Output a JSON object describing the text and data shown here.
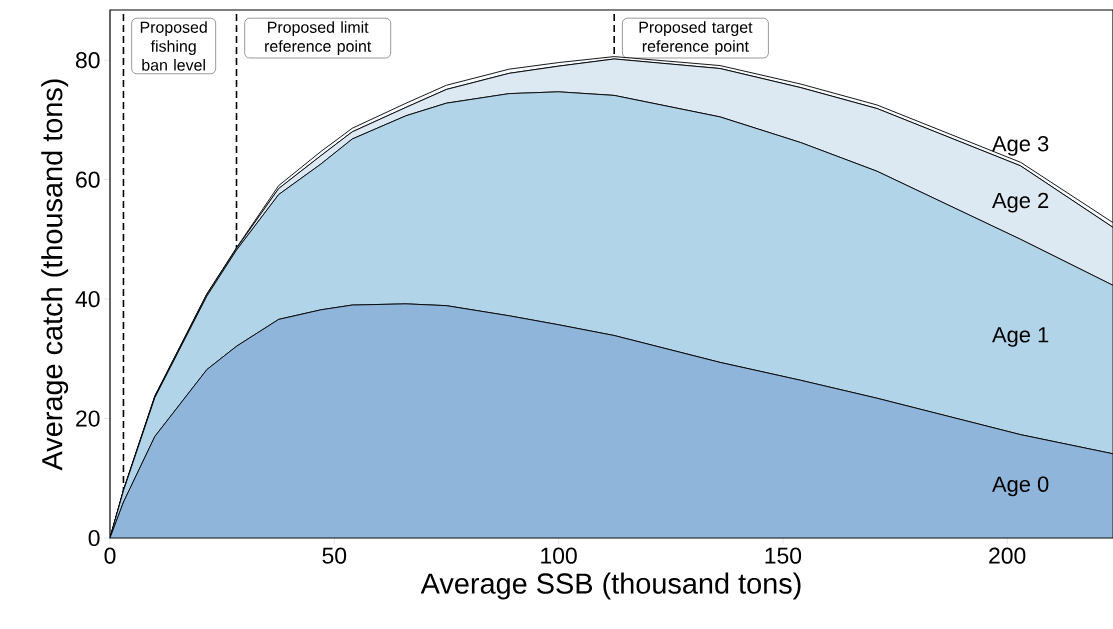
{
  "chart_data": {
    "type": "area",
    "stacked": true,
    "xlabel": "Average SSB (thousand tons)",
    "ylabel": "Average catch (thousand tons)",
    "x": [
      0,
      3,
      10,
      21.6,
      28.2,
      37.6,
      47,
      54,
      66,
      75,
      89,
      100,
      112.4,
      136,
      154,
      171,
      203,
      223.6
    ],
    "series": [
      {
        "name": "Age 0",
        "color": "#8fb5da",
        "values": [
          0,
          6,
          17,
          28.2,
          32.1,
          36.6,
          38.2,
          39.0,
          39.2,
          38.9,
          37.2,
          35.7,
          33.9,
          29.4,
          26.4,
          23.4,
          17.3,
          14.1
        ]
      },
      {
        "name": "Age 1",
        "color": "#b2d4e9",
        "values": [
          0,
          1.9,
          6.5,
          12.3,
          16.1,
          20.9,
          24.4,
          27.8,
          31.5,
          33.9,
          37.2,
          39.0,
          40.2,
          41.1,
          39.8,
          38.0,
          32.7,
          28.2
        ]
      },
      {
        "name": "Age 2",
        "color": "#dde9f2",
        "values": [
          0,
          0.1,
          0.2,
          0.3,
          0.3,
          1.0,
          1.4,
          1.2,
          1.4,
          2.3,
          3.4,
          4.3,
          6.1,
          8.1,
          9.2,
          10.5,
          12.3,
          9.7
        ]
      },
      {
        "name": "Age 3",
        "color": "#f7fbff",
        "values": [
          0,
          0,
          0.1,
          0.1,
          0.1,
          0.5,
          0.7,
          0.6,
          0.7,
          0.7,
          0.7,
          0.6,
          0.4,
          0.5,
          0.6,
          0.6,
          0.6,
          0.8
        ]
      }
    ],
    "xlim": [
      0,
      223.6
    ],
    "ylim": [
      0,
      88.4
    ],
    "xticks": [
      0,
      50,
      100,
      150,
      200
    ],
    "yticks": [
      0,
      20,
      40,
      60,
      80
    ],
    "ref_lines": [
      {
        "axis": "x",
        "value": 3.0,
        "label": "Proposed fishing ban level",
        "color": "#000000",
        "line_style": "dashed"
      },
      {
        "axis": "x",
        "value": 28.2,
        "label": "Proposed limit reference point",
        "color": "#000000",
        "line_style": "dashed"
      },
      {
        "axis": "x",
        "value": 112.4,
        "label": "Proposed target reference point",
        "color": "#000000",
        "line_style": "dashed"
      }
    ]
  }
}
